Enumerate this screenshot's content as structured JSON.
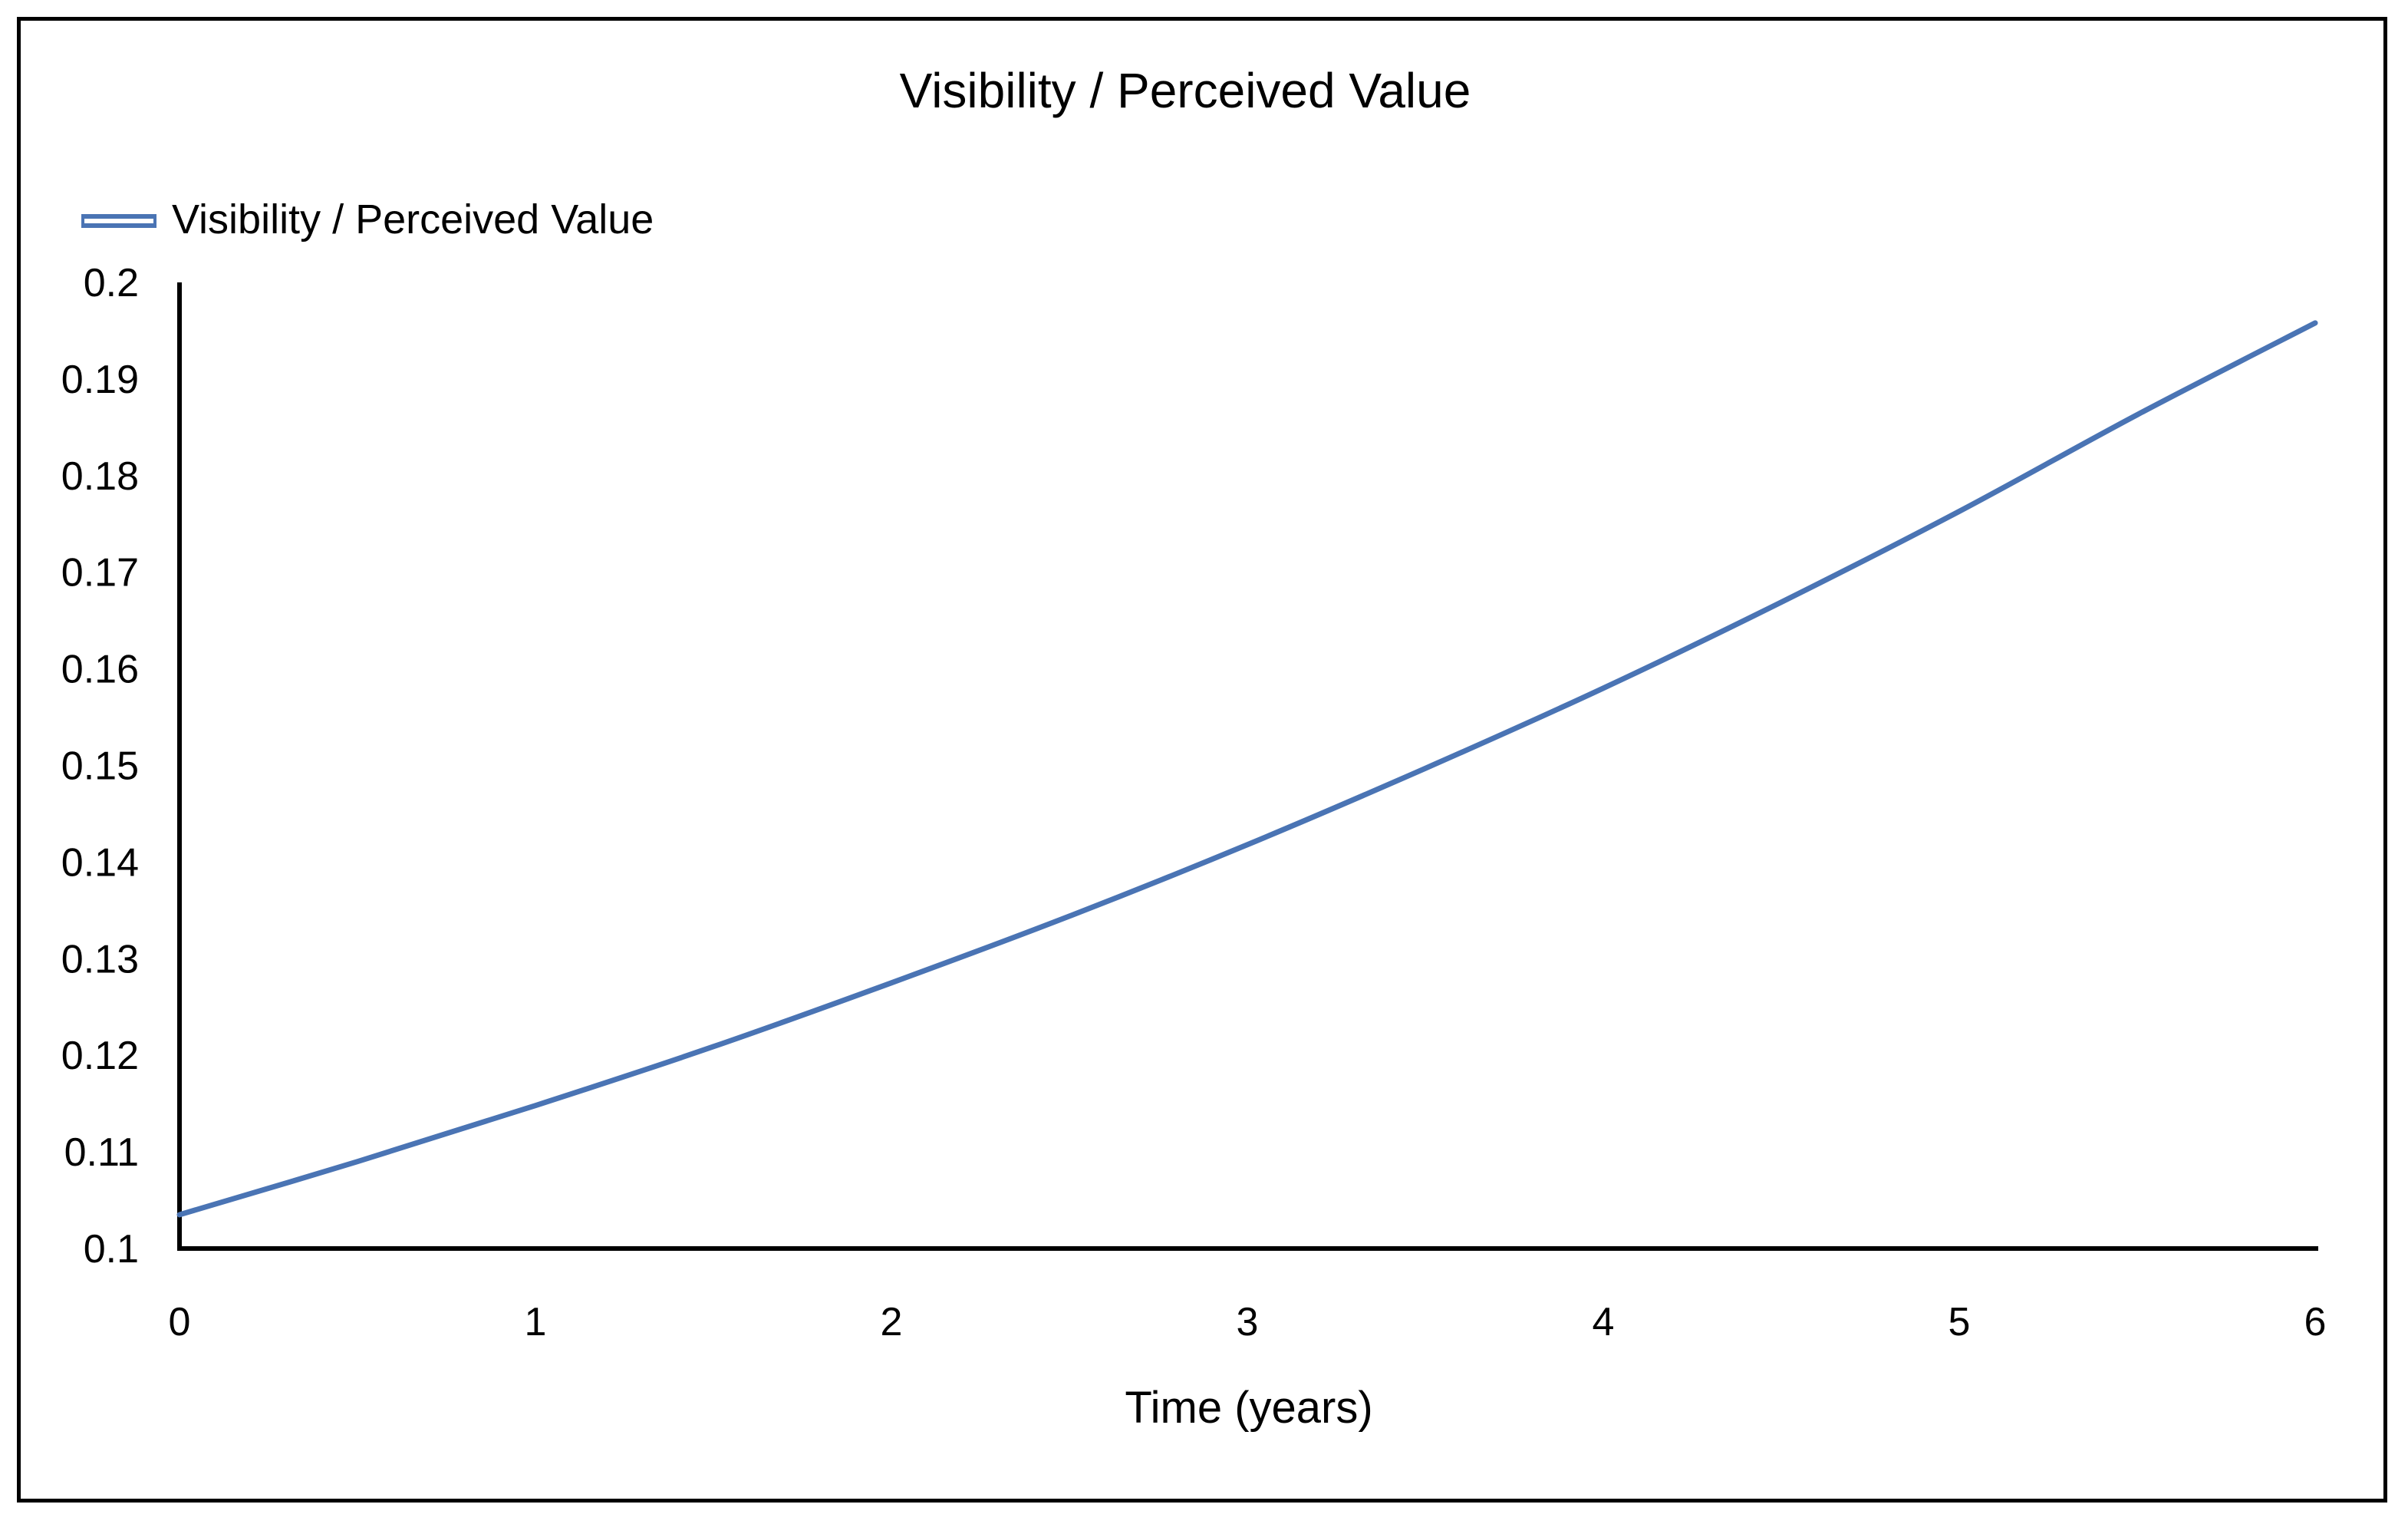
{
  "chart_data": {
    "type": "line",
    "title": "Visibility / Perceived Value",
    "xlabel": "Time (years)",
    "ylabel": "",
    "xlim": [
      0,
      6
    ],
    "ylim": [
      0.1,
      0.2
    ],
    "x_ticks": [
      "0",
      "1",
      "2",
      "3",
      "4",
      "5",
      "6"
    ],
    "y_ticks": [
      "0.2",
      "0.19",
      "0.18",
      "0.17",
      "0.16",
      "0.15",
      "0.14",
      "0.13",
      "0.12",
      "0.11",
      "0.1"
    ],
    "legend_position": "top-left",
    "grid": false,
    "series": [
      {
        "name": "Visibility / Perceived Value",
        "color": "#4a74b4",
        "x": [
          0,
          0.5,
          1,
          1.5,
          2,
          2.5,
          3,
          3.5,
          4,
          4.5,
          5,
          5.5,
          6
        ],
        "y": [
          0.1035,
          0.109,
          0.1148,
          0.1209,
          0.1275,
          0.1344,
          0.1418,
          0.1497,
          0.158,
          0.1669,
          0.1763,
          0.1863,
          0.1958
        ]
      }
    ]
  }
}
